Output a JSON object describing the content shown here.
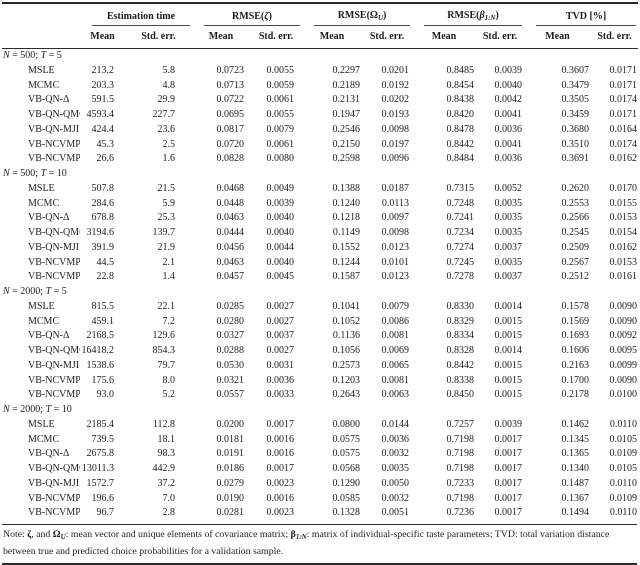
{
  "table": {
    "subheader": {
      "mean": "Mean",
      "std_err": "Std. err."
    },
    "col_groups": [
      {
        "name": "estimation-time",
        "parts": [
          {
            "t": "Estimation time",
            "s": "plain"
          }
        ]
      },
      {
        "name": "rmse-zeta",
        "parts": [
          {
            "t": "RMSE(",
            "s": "plain"
          },
          {
            "t": "ζ",
            "s": "sym"
          },
          {
            "t": ")",
            "s": "plain"
          }
        ]
      },
      {
        "name": "rmse-omega",
        "parts": [
          {
            "t": "RMSE(",
            "s": "plain"
          },
          {
            "t": "Ω",
            "s": "symu"
          },
          {
            "t": "U",
            "s": "sub"
          },
          {
            "t": ")",
            "s": "plain"
          }
        ]
      },
      {
        "name": "rmse-beta",
        "parts": [
          {
            "t": "RMSE(",
            "s": "plain"
          },
          {
            "t": "β",
            "s": "symb"
          },
          {
            "t": "1:N",
            "s": "subb"
          },
          {
            "t": ")",
            "s": "plain"
          }
        ]
      },
      {
        "name": "tvd",
        "parts": [
          {
            "t": "TVD [%]",
            "s": "plain"
          }
        ]
      }
    ],
    "column_names": [
      "method",
      "est-time-mean",
      "est-time-std",
      "rmse-zeta-mean",
      "rmse-zeta-std",
      "rmse-omega-mean",
      "rmse-omega-std",
      "rmse-beta-mean",
      "rmse-beta-std",
      "tvd-mean",
      "tvd-std"
    ],
    "sections": [
      {
        "label_parts": [
          {
            "t": "N",
            "s": "var"
          },
          {
            "t": " = 500; ",
            "s": "plain"
          },
          {
            "t": "T",
            "s": "var"
          },
          {
            "t": " = 5",
            "s": "plain"
          }
        ],
        "rows": [
          {
            "method": "MSLE",
            "values": [
              "213.2",
              "5.8",
              "0.0723",
              "0.0055",
              "0.2297",
              "0.0201",
              "0.8485",
              "0.0039",
              "0.3607",
              "0.0171"
            ]
          },
          {
            "method": "MCMC",
            "values": [
              "203.3",
              "4.8",
              "0.0713",
              "0.0059",
              "0.2189",
              "0.0192",
              "0.8454",
              "0.0040",
              "0.3479",
              "0.0171"
            ]
          },
          {
            "method": "VB-QN-Δ",
            "values": [
              "591.5",
              "29.9",
              "0.0722",
              "0.0061",
              "0.2131",
              "0.0202",
              "0.8438",
              "0.0042",
              "0.3505",
              "0.0174"
            ]
          },
          {
            "method": "VB-QN-QMC",
            "values": [
              "4593.4",
              "227.7",
              "0.0695",
              "0.0055",
              "0.1947",
              "0.0193",
              "0.8420",
              "0.0041",
              "0.3459",
              "0.0171"
            ]
          },
          {
            "method": "VB-QN-MJI",
            "values": [
              "424.4",
              "23.6",
              "0.0817",
              "0.0079",
              "0.2546",
              "0.0098",
              "0.8478",
              "0.0036",
              "0.3680",
              "0.0164"
            ]
          },
          {
            "method": "VB-NCVMP-Δ",
            "values": [
              "45.3",
              "2.5",
              "0.0720",
              "0.0061",
              "0.2150",
              "0.0197",
              "0.8442",
              "0.0041",
              "0.3510",
              "0.0174"
            ]
          },
          {
            "method": "VB-NCVMP-MJI",
            "values": [
              "26.6",
              "1.6",
              "0.0828",
              "0.0080",
              "0.2598",
              "0.0096",
              "0.8484",
              "0.0036",
              "0.3691",
              "0.0162"
            ]
          }
        ]
      },
      {
        "label_parts": [
          {
            "t": "N",
            "s": "var"
          },
          {
            "t": " = 500; ",
            "s": "plain"
          },
          {
            "t": "T",
            "s": "var"
          },
          {
            "t": " = 10",
            "s": "plain"
          }
        ],
        "rows": [
          {
            "method": "MSLE",
            "values": [
              "507.8",
              "21.5",
              "0.0468",
              "0.0049",
              "0.1388",
              "0.0187",
              "0.7315",
              "0.0052",
              "0.2620",
              "0.0170"
            ]
          },
          {
            "method": "MCMC",
            "values": [
              "284.6",
              "5.9",
              "0.0448",
              "0.0039",
              "0.1240",
              "0.0113",
              "0.7248",
              "0.0035",
              "0.2553",
              "0.0155"
            ]
          },
          {
            "method": "VB-QN-Δ",
            "values": [
              "678.8",
              "25.3",
              "0.0463",
              "0.0040",
              "0.1218",
              "0.0097",
              "0.7241",
              "0.0035",
              "0.2566",
              "0.0153"
            ]
          },
          {
            "method": "VB-QN-QMC",
            "values": [
              "3194.6",
              "139.7",
              "0.0444",
              "0.0040",
              "0.1149",
              "0.0098",
              "0.7234",
              "0.0035",
              "0.2545",
              "0.0154"
            ]
          },
          {
            "method": "VB-QN-MJI",
            "values": [
              "391.9",
              "21.9",
              "0.0456",
              "0.0044",
              "0.1552",
              "0.0123",
              "0.7274",
              "0.0037",
              "0.2509",
              "0.0162"
            ]
          },
          {
            "method": "VB-NCVMP-Δ",
            "values": [
              "44.5",
              "2.1",
              "0.0463",
              "0.0040",
              "0.1244",
              "0.0101",
              "0.7245",
              "0.0035",
              "0.2567",
              "0.0153"
            ]
          },
          {
            "method": "VB-NCVMP-MJI",
            "values": [
              "22.8",
              "1.4",
              "0.0457",
              "0.0045",
              "0.1587",
              "0.0123",
              "0.7278",
              "0.0037",
              "0.2512",
              "0.0161"
            ]
          }
        ]
      },
      {
        "label_parts": [
          {
            "t": "N",
            "s": "var"
          },
          {
            "t": " = 2000; ",
            "s": "plain"
          },
          {
            "t": "T",
            "s": "var"
          },
          {
            "t": " = 5",
            "s": "plain"
          }
        ],
        "rows": [
          {
            "method": "MSLE",
            "values": [
              "815.5",
              "22.1",
              "0.0285",
              "0.0027",
              "0.1041",
              "0.0079",
              "0.8330",
              "0.0014",
              "0.1578",
              "0.0090"
            ]
          },
          {
            "method": "MCMC",
            "values": [
              "459.1",
              "7.2",
              "0.0280",
              "0.0027",
              "0.1052",
              "0.0086",
              "0.8329",
              "0.0015",
              "0.1569",
              "0.0090"
            ]
          },
          {
            "method": "VB-QN-Δ",
            "values": [
              "2168.5",
              "129.6",
              "0.0327",
              "0.0037",
              "0.1136",
              "0.0081",
              "0.8334",
              "0.0015",
              "0.1693",
              "0.0092"
            ]
          },
          {
            "method": "VB-QN-QMC",
            "values": [
              "16418.2",
              "854.3",
              "0.0288",
              "0.0027",
              "0.1056",
              "0.0069",
              "0.8328",
              "0.0014",
              "0.1606",
              "0.0095"
            ]
          },
          {
            "method": "VB-QN-MJI",
            "values": [
              "1538.6",
              "79.7",
              "0.0530",
              "0.0031",
              "0.2573",
              "0.0065",
              "0.8442",
              "0.0015",
              "0.2163",
              "0.0099"
            ]
          },
          {
            "method": "VB-NCVMP-Δ",
            "values": [
              "175.6",
              "8.0",
              "0.0321",
              "0.0036",
              "0.1203",
              "0.0081",
              "0.8338",
              "0.0015",
              "0.1700",
              "0.0090"
            ]
          },
          {
            "method": "VB-NCVMP-MJI",
            "values": [
              "93.0",
              "5.2",
              "0.0557",
              "0.0033",
              "0.2643",
              "0.0063",
              "0.8450",
              "0.0015",
              "0.2178",
              "0.0100"
            ]
          }
        ]
      },
      {
        "label_parts": [
          {
            "t": "N",
            "s": "var"
          },
          {
            "t": " = 2000; ",
            "s": "plain"
          },
          {
            "t": "T",
            "s": "var"
          },
          {
            "t": " = 10",
            "s": "plain"
          }
        ],
        "rows": [
          {
            "method": "MSLE",
            "values": [
              "2185.4",
              "112.8",
              "0.0200",
              "0.0017",
              "0.0800",
              "0.0144",
              "0.7257",
              "0.0039",
              "0.1462",
              "0.0110"
            ]
          },
          {
            "method": "MCMC",
            "values": [
              "739.5",
              "18.1",
              "0.0181",
              "0.0016",
              "0.0575",
              "0.0036",
              "0.7198",
              "0.0017",
              "0.1345",
              "0.0105"
            ]
          },
          {
            "method": "VB-QN-Δ",
            "values": [
              "2675.8",
              "98.3",
              "0.0191",
              "0.0016",
              "0.0575",
              "0.0032",
              "0.7198",
              "0.0017",
              "0.1365",
              "0.0109"
            ]
          },
          {
            "method": "VB-QN-QMC",
            "values": [
              "13011.3",
              "442.9",
              "0.0186",
              "0.0017",
              "0.0568",
              "0.0035",
              "0.7198",
              "0.0017",
              "0.1340",
              "0.0105"
            ]
          },
          {
            "method": "VB-QN-MJI",
            "values": [
              "1572.7",
              "37.2",
              "0.0279",
              "0.0023",
              "0.1290",
              "0.0050",
              "0.7233",
              "0.0017",
              "0.1487",
              "0.0110"
            ]
          },
          {
            "method": "VB-NCVMP-Δ",
            "values": [
              "196.6",
              "7.0",
              "0.0190",
              "0.0016",
              "0.0585",
              "0.0032",
              "0.7198",
              "0.0017",
              "0.1367",
              "0.0109"
            ]
          },
          {
            "method": "VB-NCVMP-MJI",
            "values": [
              "96.7",
              "2.8",
              "0.0281",
              "0.0023",
              "0.1328",
              "0.0051",
              "0.7236",
              "0.0017",
              "0.1494",
              "0.0110"
            ]
          }
        ]
      }
    ],
    "note_parts": [
      {
        "t": "Note: ",
        "s": "plain"
      },
      {
        "t": "ζ",
        "s": "bsym"
      },
      {
        "t": ", and ",
        "s": "plain"
      },
      {
        "t": "Ω",
        "s": "bsym"
      },
      {
        "t": "U",
        "s": "bsub"
      },
      {
        "t": ": mean vector and unique elements of covariance matrix; ",
        "s": "plain"
      },
      {
        "t": "β",
        "s": "bsym"
      },
      {
        "t": "1:N",
        "s": "bsub"
      },
      {
        "t": ": matrix of individual-specific taste parameters; TVD: total variation distance between true and predicted choice probabilities for a validation sample.",
        "s": "plain"
      }
    ]
  }
}
